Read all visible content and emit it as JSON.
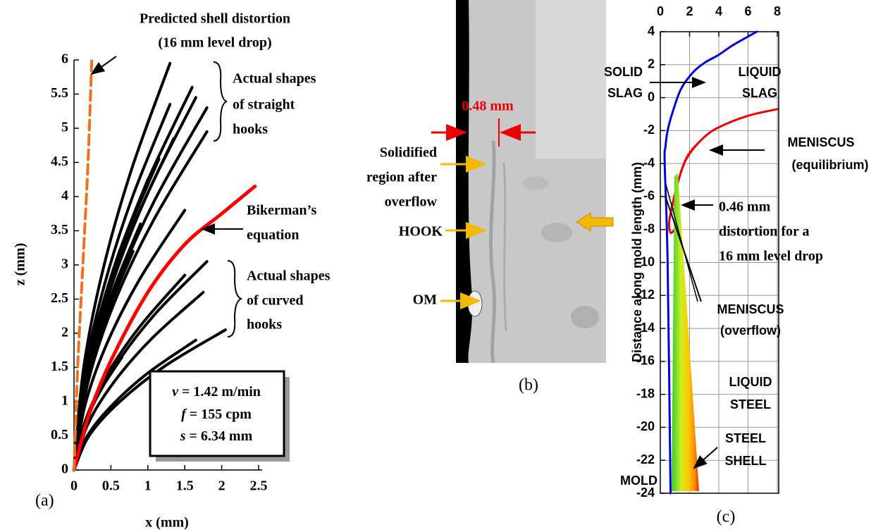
{
  "chart_data": [
    {
      "type": "line",
      "panel_label": "(a)",
      "xlabel": "x (mm)",
      "ylabel": "z (mm)",
      "xlim": [
        0,
        2.5
      ],
      "ylim": [
        0,
        6
      ],
      "xticks": [
        0,
        0.5,
        1,
        1.5,
        2,
        2.5
      ],
      "yticks": [
        0,
        0.5,
        1,
        1.5,
        2,
        2.5,
        3,
        3.5,
        4,
        4.5,
        5,
        5.5,
        6
      ],
      "grid": false,
      "curves": [
        {
          "color": "#000000",
          "x": [
            0,
            0.13,
            0.39,
            0.78,
            1.3
          ],
          "y": [
            0,
            1.49,
            2.92,
            4.4,
            5.95
          ]
        },
        {
          "color": "#000000",
          "x": [
            0,
            0.16,
            0.48,
            0.96,
            1.6
          ],
          "y": [
            0,
            1.4,
            2.74,
            4.14,
            5.6
          ]
        },
        {
          "color": "#000000",
          "x": [
            0,
            0.17,
            0.5,
            0.99,
            1.65
          ],
          "y": [
            0,
            1.36,
            2.67,
            4.03,
            5.45
          ]
        },
        {
          "color": "#000000",
          "x": [
            0,
            0.18,
            0.54,
            1.08,
            1.8
          ],
          "y": [
            0,
            1.33,
            2.6,
            3.92,
            5.3
          ]
        },
        {
          "color": "#000000",
          "x": [
            0,
            0.13,
            0.39,
            0.78,
            1.3
          ],
          "y": [
            0,
            1.34,
            2.62,
            3.96,
            5.35
          ]
        },
        {
          "color": "#000000",
          "x": [
            0,
            0.18,
            0.54,
            1.08,
            1.8
          ],
          "y": [
            0,
            1.24,
            2.43,
            3.66,
            4.95
          ]
        },
        {
          "color": "#000000",
          "x": [
            0,
            0.14,
            0.41,
            0.81,
            1.35
          ],
          "y": [
            0,
            1.21,
            2.38,
            3.59,
            4.85
          ]
        },
        {
          "color": "#000000",
          "x": [
            0,
            0.12,
            0.35,
            0.69,
            1.15
          ],
          "y": [
            0,
            1.14,
            2.23,
            3.37,
            4.55
          ]
        },
        {
          "color": "#000000",
          "x": [
            0,
            0.1,
            0.3,
            0.6,
            1.0
          ],
          "y": [
            0,
            1.06,
            2.08,
            3.15,
            4.25
          ]
        },
        {
          "color": "#000000",
          "x": [
            0,
            0.15,
            0.45,
            0.9,
            1.5
          ],
          "y": [
            0,
            0.95,
            1.86,
            2.81,
            3.8
          ]
        },
        {
          "color": "#000000",
          "x": [
            0,
            0.09,
            0.27,
            0.54,
            0.9
          ],
          "y": [
            0,
            0.9,
            1.76,
            2.66,
            3.6
          ]
        },
        {
          "color": "#000000",
          "x": [
            0,
            0.08,
            0.24,
            0.48,
            0.8
          ],
          "y": [
            0,
            0.8,
            1.57,
            2.37,
            3.2
          ]
        },
        {
          "color": "#000000",
          "x": [
            0,
            0.18,
            0.54,
            1.08,
            1.8
          ],
          "y": [
            0,
            0.76,
            1.49,
            2.26,
            3.05
          ]
        },
        {
          "color": "#000000",
          "x": [
            0,
            0.15,
            0.45,
            0.9,
            1.5
          ],
          "y": [
            0,
            0.71,
            1.4,
            2.11,
            2.85
          ]
        },
        {
          "color": "#000000",
          "x": [
            0,
            0.18,
            0.53,
            1.05,
            1.75
          ],
          "y": [
            0,
            0.65,
            1.27,
            1.92,
            2.6
          ]
        },
        {
          "color": "#000000",
          "x": [
            0,
            0.21,
            0.62,
            1.23,
            2.05
          ],
          "y": [
            0,
            0.51,
            1.0,
            1.52,
            2.05
          ]
        },
        {
          "color": "#000000",
          "x": [
            0,
            0.17,
            0.5,
            0.99,
            1.65
          ],
          "y": [
            0,
            0.48,
            0.93,
            1.41,
            1.9
          ]
        },
        {
          "color": "#000000",
          "x": [
            0,
            0.07,
            0.2,
            0.39,
            0.65
          ],
          "y": [
            0,
            0.41,
            0.81,
            1.22,
            1.65
          ]
        },
        {
          "color": "#ff0000",
          "x": [
            0,
            0.2,
            0.5,
            1,
            1.5,
            2,
            2.45
          ],
          "y": [
            0,
            0.8,
            1.6,
            2.6,
            3.3,
            3.75,
            4.15
          ]
        },
        {
          "color": "#f07020",
          "dash": true,
          "x": [
            0,
            0.05,
            0.12,
            0.19,
            0.24
          ],
          "y": [
            0,
            1.5,
            3,
            4.5,
            6
          ]
        }
      ],
      "annotations": [
        "Predicted shell distortion",
        "(16 mm level drop)",
        "Actual shapes",
        "of straight",
        "hooks",
        "Bikerman’s",
        "equation",
        "Actual shapes",
        "of curved",
        "hooks"
      ],
      "box": [
        {
          "symbol": "v",
          "text": "= 1.42 m/min"
        },
        {
          "symbol": "f",
          "text": "= 155 cpm"
        },
        {
          "symbol": "s",
          "text": "= 6.34 mm"
        }
      ]
    },
    {
      "type": "image",
      "panel_label": "(b)",
      "annotations": [
        "0.48 mm",
        "Solidified",
        "region after",
        "overflow",
        "HOOK",
        "OM"
      ]
    },
    {
      "type": "line",
      "panel_label": "(c)",
      "ylabel": "Distance along mold length (mm)",
      "xlim": [
        0,
        8
      ],
      "ylim": [
        -24,
        4
      ],
      "xticks": [
        0,
        2,
        4,
        6,
        8
      ],
      "yticks": [
        4,
        2,
        0,
        -2,
        -4,
        -6,
        -8,
        -10,
        -12,
        -14,
        -16,
        -18,
        -20,
        -22,
        -24
      ],
      "grid": true,
      "curves": [
        {
          "color": "#0000dd",
          "x": [
            0.7,
            0.5,
            0.3,
            0.35,
            0.5,
            0.8,
            1.4,
            2.2,
            3,
            4,
            5,
            6.6
          ],
          "y": [
            -24,
            -10,
            -4,
            -3,
            -2,
            -1,
            0.5,
            1.5,
            2.1,
            2.6,
            3.2,
            4
          ]
        },
        {
          "color": "#ee0000",
          "dash": true,
          "x": [
            8,
            6,
            4,
            3,
            2,
            1.5,
            1.2,
            1.0,
            0.9
          ],
          "y": [
            -0.7,
            -1.1,
            -1.8,
            -2.4,
            -3.3,
            -4.2,
            -5.2,
            -6.3,
            -7
          ]
        },
        {
          "color": "#ee0000",
          "x": [
            8,
            6,
            4,
            3,
            2,
            1.5,
            1.1,
            0.8,
            0.6,
            0.7,
            1.0
          ],
          "y": [
            -0.7,
            -1.1,
            -1.8,
            -2.4,
            -3.4,
            -4.3,
            -5.5,
            -6.6,
            -7.6,
            -8.2,
            -8.0
          ]
        }
      ],
      "annotations": [
        "SOLID",
        "SLAG",
        "LIQUID",
        "SLAG",
        "MENISCUS",
        "(equilibrium)",
        "0.46 mm",
        "distortion for a",
        "16 mm level drop",
        "MENISCUS",
        "(overflow)",
        "LIQUID",
        "STEEL",
        "STEEL",
        "SHELL",
        "MOLD"
      ]
    }
  ]
}
